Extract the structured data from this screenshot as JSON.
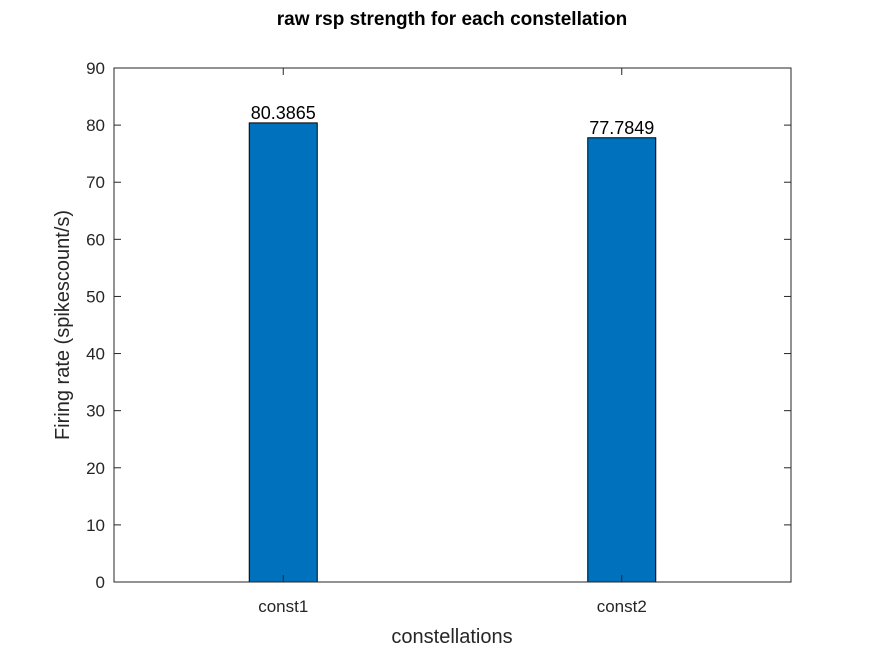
{
  "chart_data": {
    "type": "bar",
    "title": "raw rsp strength for each constellation",
    "xlabel": "constellations",
    "ylabel": "Firing rate (spikescount/s)",
    "categories": [
      "const1",
      "const2"
    ],
    "values": [
      80.3865,
      77.7849
    ],
    "data_labels": [
      "80.3865",
      "77.7849"
    ],
    "ylim": [
      0,
      90
    ],
    "yticks": [
      0,
      10,
      20,
      30,
      40,
      50,
      60,
      70,
      80,
      90
    ],
    "grid": false,
    "legend": "none",
    "colors": {
      "bar_fill": "#0072BD",
      "bar_edge": "#000000",
      "axis": "#262626",
      "background": "#ffffff"
    }
  }
}
